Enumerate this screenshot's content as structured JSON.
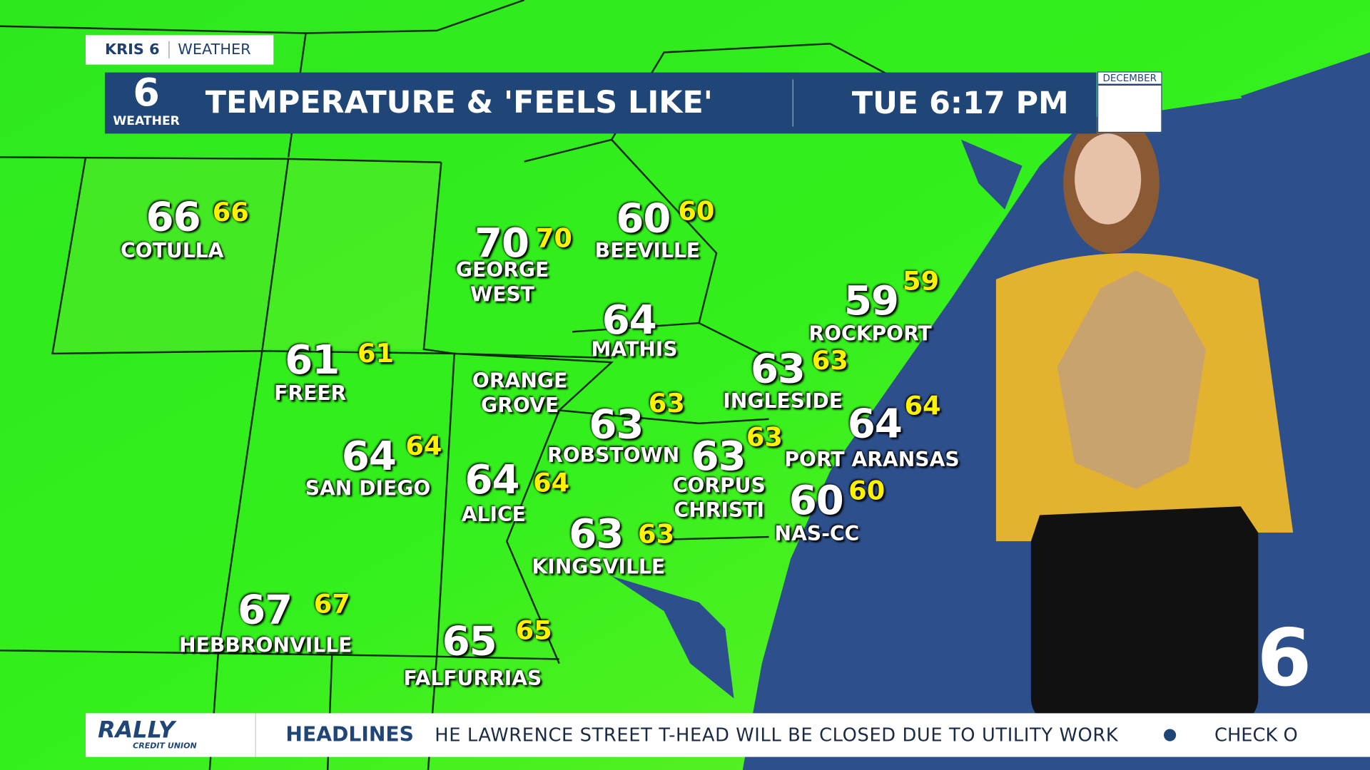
{
  "header": {
    "station": "KRIS 6",
    "section": "WEATHER",
    "title": "TEMPERATURE & 'FEELS LIKE'",
    "time": "TUE 6:17 PM",
    "calendar_month": "DECEMBER",
    "logo": "6",
    "logo_caption": "WEATHER"
  },
  "cities": [
    {
      "name": "COTULLA",
      "temp": 66,
      "feels": 66
    },
    {
      "name": "GEORGE WEST",
      "temp": 70,
      "feels": 70
    },
    {
      "name": "BEEVILLE",
      "temp": 60,
      "feels": 60
    },
    {
      "name": "MATHIS",
      "temp": 64
    },
    {
      "name": "ROCKPORT",
      "temp": 59,
      "feels": 59
    },
    {
      "name": "FREER",
      "temp": 61,
      "feels": 61
    },
    {
      "name": "ORANGE GROVE"
    },
    {
      "name": "INGLESIDE",
      "temp": 63,
      "feels": 63
    },
    {
      "name": "ROBSTOWN",
      "temp": 63,
      "feels": 63
    },
    {
      "name": "CORPUS CHRISTI",
      "temp": 63,
      "feels": 63
    },
    {
      "name": "PORT ARANSAS",
      "temp": 64,
      "feels": 64
    },
    {
      "name": "SAN DIEGO",
      "temp": 64,
      "feels": 64
    },
    {
      "name": "ALICE",
      "temp": 64,
      "feels": 64
    },
    {
      "name": "NAS-CC",
      "temp": 60,
      "feels": 60
    },
    {
      "name": "KINGSVILLE",
      "temp": 63,
      "feels": 63
    },
    {
      "name": "HEBBRONVILLE",
      "temp": 67,
      "feels": 67
    },
    {
      "name": "FALFURRIAS",
      "temp": 65,
      "feels": 65
    }
  ],
  "ticker": {
    "sponsor": "RALLY",
    "sponsor_sub": "CREDIT UNION",
    "label": "HEADLINES",
    "story": "HE LAWRENCE STREET T-HEAD WILL BE CLOSED DUE TO UTILITY WORK",
    "next_story": "CHECK O"
  }
}
